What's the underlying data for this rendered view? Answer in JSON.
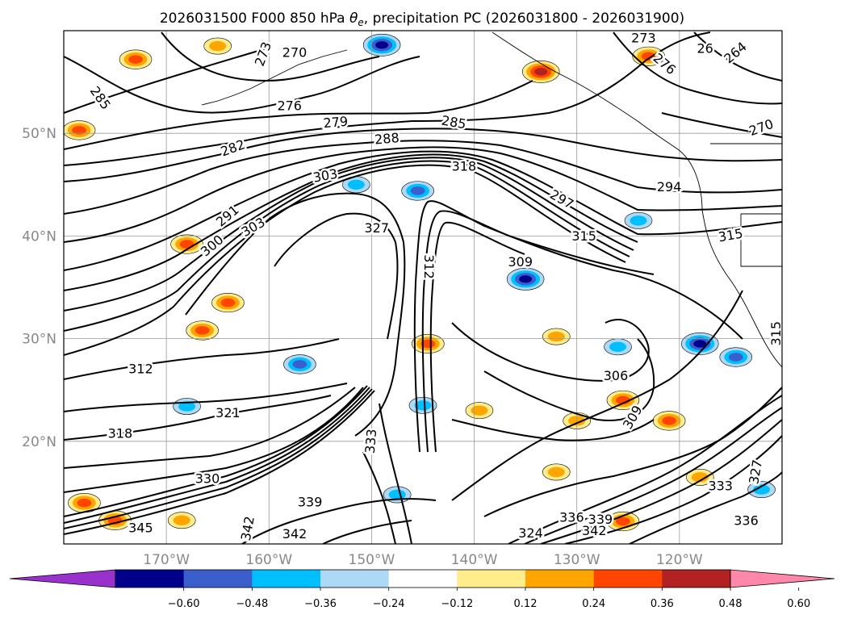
{
  "chart_data": {
    "type": "contour_map",
    "title_main": "2026031500 F000 850 hPa ",
    "title_var": "θ",
    "title_sub": "e",
    "title_rest": ", precipitation PC (2026031800 - 2026031900)",
    "lon_range": [
      -180,
      -110
    ],
    "lat_range": [
      10,
      60
    ],
    "lon_ticks": [
      -170,
      -160,
      -150,
      -140,
      -130,
      -120
    ],
    "lon_tick_labels": [
      "170°W",
      "160°W",
      "150°W",
      "140°W",
      "130°W",
      "120°W"
    ],
    "lat_ticks": [
      20,
      30,
      40,
      50
    ],
    "lat_tick_labels": [
      "20°N",
      "30°N",
      "40°N",
      "50°N"
    ],
    "grid": true,
    "contour_levels": [
      "264",
      "270",
      "273",
      "276",
      "279",
      "282",
      "285",
      "288",
      "291",
      "294",
      "297",
      "300",
      "303",
      "306",
      "309",
      "312",
      "315",
      "318",
      "321",
      "324",
      "327",
      "330",
      "333",
      "336",
      "339",
      "342",
      "345"
    ],
    "contour_labels": [
      {
        "text": "285",
        "lon": -176.5,
        "lat": 53.4,
        "rot": 55
      },
      {
        "text": "273",
        "lon": -160.5,
        "lat": 57.7,
        "rot": -70
      },
      {
        "text": "270",
        "lon": -157.5,
        "lat": 57.8,
        "rot": 0
      },
      {
        "text": "276",
        "lon": -158,
        "lat": 52.6,
        "rot": 0
      },
      {
        "text": "279",
        "lon": -153.5,
        "lat": 51.0,
        "rot": -5
      },
      {
        "text": "282",
        "lon": -163.5,
        "lat": 48.5,
        "rot": -20
      },
      {
        "text": "285",
        "lon": -142,
        "lat": 51.0,
        "rot": 10
      },
      {
        "text": "288",
        "lon": -148.5,
        "lat": 49.4,
        "rot": -5
      },
      {
        "text": "291",
        "lon": -164,
        "lat": 41.9,
        "rot": -40
      },
      {
        "text": "300",
        "lon": -165.5,
        "lat": 39.0,
        "rot": -40
      },
      {
        "text": "303",
        "lon": -161.5,
        "lat": 40.8,
        "rot": -30
      },
      {
        "text": "303",
        "lon": -154.5,
        "lat": 45.8,
        "rot": -10
      },
      {
        "text": "318",
        "lon": -141,
        "lat": 46.7,
        "rot": 0
      },
      {
        "text": "327",
        "lon": -149.5,
        "lat": 40.7,
        "rot": 0
      },
      {
        "text": "312",
        "lon": -144.5,
        "lat": 37.0,
        "rot": 90
      },
      {
        "text": "309",
        "lon": -135.5,
        "lat": 37.4,
        "rot": 0
      },
      {
        "text": "297",
        "lon": -131.5,
        "lat": 43.5,
        "rot": 30
      },
      {
        "text": "315",
        "lon": -129.3,
        "lat": 39.9,
        "rot": 0
      },
      {
        "text": "294",
        "lon": -121,
        "lat": 44.7,
        "rot": 0
      },
      {
        "text": "315",
        "lon": -115,
        "lat": 40.0,
        "rot": -10
      },
      {
        "text": "276",
        "lon": -121.5,
        "lat": 56.7,
        "rot": 40
      },
      {
        "text": "273",
        "lon": -123.5,
        "lat": 59.2,
        "rot": 0
      },
      {
        "text": "264",
        "lon": -114.5,
        "lat": 57.8,
        "rot": -40
      },
      {
        "text": "270",
        "lon": -112,
        "lat": 50.5,
        "rot": -20
      },
      {
        "text": "26",
        "lon": -117.5,
        "lat": 58.2,
        "rot": 0
      },
      {
        "text": "312",
        "lon": -172.5,
        "lat": 27.0,
        "rot": 0
      },
      {
        "text": "321",
        "lon": -164,
        "lat": 22.7,
        "rot": 0
      },
      {
        "text": "318",
        "lon": -174.5,
        "lat": 20.7,
        "rot": 0
      },
      {
        "text": "330",
        "lon": -166,
        "lat": 16.3,
        "rot": 0
      },
      {
        "text": "333",
        "lon": -150,
        "lat": 20.0,
        "rot": -85
      },
      {
        "text": "339",
        "lon": -156,
        "lat": 14.0,
        "rot": 0
      },
      {
        "text": "345",
        "lon": -172.5,
        "lat": 11.5,
        "rot": 0
      },
      {
        "text": "342",
        "lon": -162,
        "lat": 11.5,
        "rot": -80
      },
      {
        "text": "342",
        "lon": -157.5,
        "lat": 10.9,
        "rot": 0
      },
      {
        "text": "306",
        "lon": -126.2,
        "lat": 26.3,
        "rot": 0
      },
      {
        "text": "309",
        "lon": -124.5,
        "lat": 22.3,
        "rot": -60
      },
      {
        "text": "333",
        "lon": -116,
        "lat": 15.6,
        "rot": 0
      },
      {
        "text": "336",
        "lon": -113.5,
        "lat": 12.2,
        "rot": 0
      },
      {
        "text": "339",
        "lon": -127.7,
        "lat": 12.3,
        "rot": 0
      },
      {
        "text": "342",
        "lon": -128.3,
        "lat": 11.2,
        "rot": 0
      },
      {
        "text": "336",
        "lon": -130.5,
        "lat": 12.5,
        "rot": 0
      },
      {
        "text": "327",
        "lon": -112.5,
        "lat": 17.0,
        "rot": -80
      },
      {
        "text": "324",
        "lon": -134.5,
        "lat": 11.0,
        "rot": 0
      },
      {
        "text": "315",
        "lon": -110.5,
        "lat": 30.5,
        "rot": -90
      }
    ],
    "precip_patches": [
      {
        "lon": -165,
        "lat": 58.5,
        "level": 0.3
      },
      {
        "lon": -173,
        "lat": 57.2,
        "level": 0.4
      },
      {
        "lon": -149,
        "lat": 58.6,
        "level": -0.5
      },
      {
        "lon": -133.5,
        "lat": 56.0,
        "level": 0.5
      },
      {
        "lon": -123,
        "lat": 57.5,
        "level": 0.4
      },
      {
        "lon": -178.5,
        "lat": 50.3,
        "level": 0.4
      },
      {
        "lon": -168,
        "lat": 39.2,
        "level": 0.4
      },
      {
        "lon": -145.5,
        "lat": 44.4,
        "level": -0.4
      },
      {
        "lon": -151.5,
        "lat": 45.0,
        "level": -0.3
      },
      {
        "lon": -135,
        "lat": 35.8,
        "level": -0.5
      },
      {
        "lon": -124,
        "lat": 41.5,
        "level": -0.3
      },
      {
        "lon": -164,
        "lat": 33.5,
        "level": 0.4
      },
      {
        "lon": -166.5,
        "lat": 30.8,
        "level": 0.4
      },
      {
        "lon": -157,
        "lat": 27.5,
        "level": -0.4
      },
      {
        "lon": -132,
        "lat": 30.2,
        "level": 0.3
      },
      {
        "lon": -118,
        "lat": 29.5,
        "level": -0.5
      },
      {
        "lon": -114.5,
        "lat": 28.2,
        "level": -0.4
      },
      {
        "lon": -126,
        "lat": 29.2,
        "level": -0.3
      },
      {
        "lon": -144.5,
        "lat": 29.5,
        "level": 0.4
      },
      {
        "lon": -125.5,
        "lat": 24.0,
        "level": 0.4
      },
      {
        "lon": -130,
        "lat": 22.0,
        "level": 0.3
      },
      {
        "lon": -121,
        "lat": 22.0,
        "level": 0.4
      },
      {
        "lon": -145,
        "lat": 23.5,
        "level": -0.3
      },
      {
        "lon": -168,
        "lat": 23.4,
        "level": -0.3
      },
      {
        "lon": -178,
        "lat": 14.0,
        "level": 0.4
      },
      {
        "lon": -175,
        "lat": 12.3,
        "level": 0.4
      },
      {
        "lon": -168.5,
        "lat": 12.3,
        "level": 0.3
      },
      {
        "lon": -147.5,
        "lat": 14.8,
        "level": -0.3
      },
      {
        "lon": -139.5,
        "lat": 23.0,
        "level": 0.3
      },
      {
        "lon": -132,
        "lat": 17.0,
        "level": 0.3
      },
      {
        "lon": -125.5,
        "lat": 12.2,
        "level": 0.4
      },
      {
        "lon": -118,
        "lat": 16.5,
        "level": 0.3
      },
      {
        "lon": -112,
        "lat": 15.3,
        "level": -0.3
      }
    ],
    "colorbar": {
      "ticks": [
        "−0.60",
        "−0.48",
        "−0.36",
        "−0.24",
        "−0.12",
        "0.12",
        "0.24",
        "0.36",
        "0.48",
        "0.60"
      ],
      "colors": [
        "#9932cc",
        "#00008b",
        "#3a5fcd",
        "#00bfff",
        "#add8f6",
        "#ffffff",
        "#ffec8b",
        "#ffa500",
        "#ff4500",
        "#b22222",
        "#ff88aa"
      ],
      "levels": [
        -0.6,
        -0.48,
        -0.36,
        -0.24,
        -0.12,
        0.12,
        0.24,
        0.36,
        0.48,
        0.6
      ]
    }
  }
}
